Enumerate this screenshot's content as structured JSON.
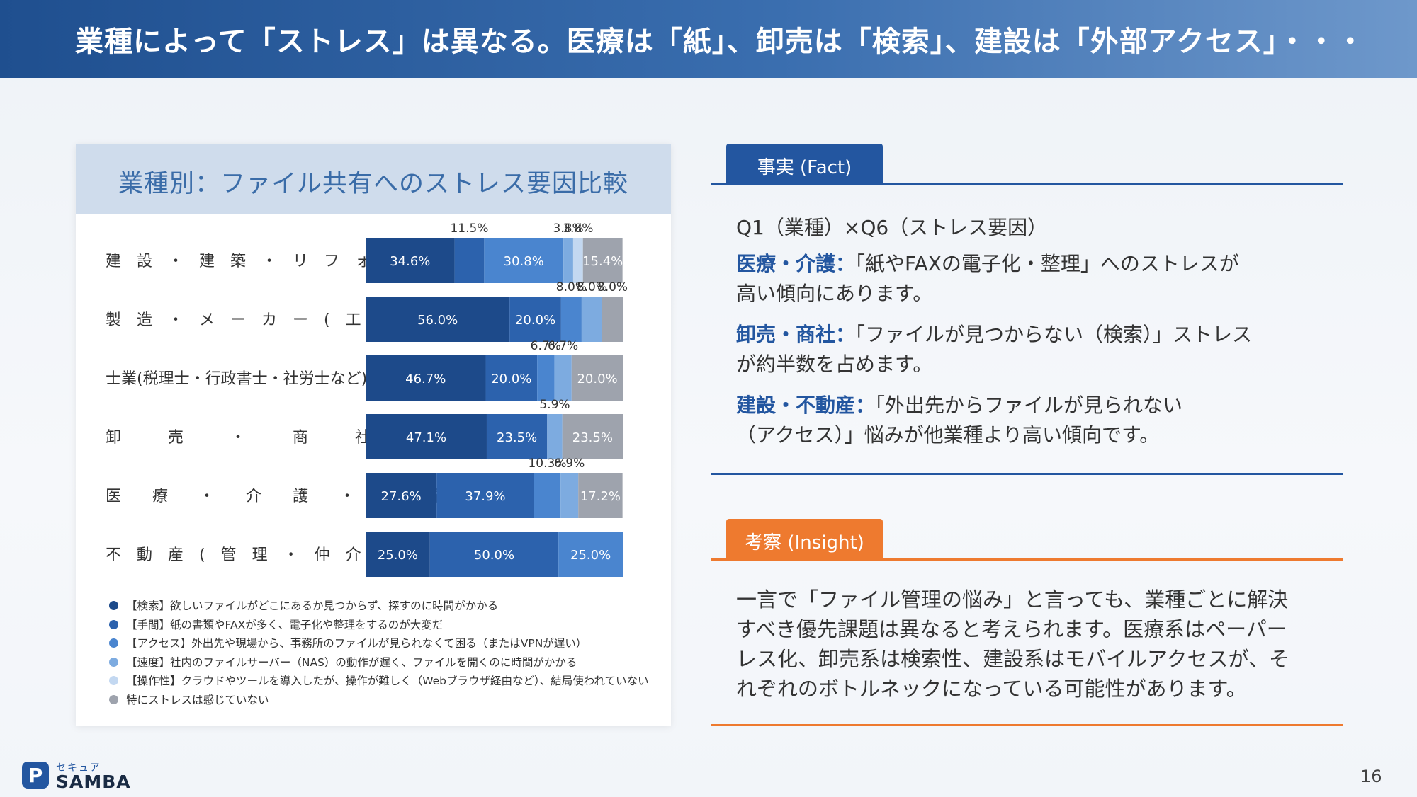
{
  "header": {
    "title": "業種によって「ストレス」は異なる。医療は「紙」、卸売は「検索」、建設は「外部アクセス」・・・"
  },
  "chart_data": {
    "type": "bar",
    "orientation": "horizontal",
    "stacked": true,
    "title": "業種別：ファイル共有へのストレス要因比較",
    "xlabel": "",
    "ylabel": "",
    "xlim": [
      0,
      100
    ],
    "grid": false,
    "legend_position": "bottom",
    "categories": [
      "建 設 ・ 建 築 ・ リ フ ォ ー ム",
      "製 造 ・ メ ー カ ー ( 工 場 含 む )",
      "士業(税理士・行政書士・社労士など)",
      "卸 売 ・ 商 社",
      "医 療 ・ 介 護 ・ 福 祉",
      "不 動 産 ( 管 理 ・ 仲 介 )"
    ],
    "category_labels_display": [
      "建　設　・　建　築　・　リ　フ　ォ　ー　ム",
      "製　造　・　メ　ー　カ　ー　(　工　場　含　む　)",
      "士業(税理士・行政書士・社労士など)",
      "卸　　　売　　　・　　　商　　　社",
      "医　　療　　・　　介　　護　　・　　福　　祉",
      "不　動　産　(　管　理　・　仲　介　)"
    ],
    "series": [
      {
        "name": "【検索】欲しいファイルがどこにあるか見つからず、探すのに時間がかかる",
        "color": "#1d4a8a",
        "values": [
          34.6,
          56.0,
          46.7,
          47.1,
          27.6,
          25.0
        ]
      },
      {
        "name": "【手間】紙の書類やFAXが多く、電子化や整理をするのが大変だ",
        "color": "#2c62ad",
        "values": [
          11.5,
          20.0,
          20.0,
          23.5,
          37.9,
          50.0
        ]
      },
      {
        "name": "【アクセス】外出先や現場から、事務所のファイルが見られなくて困る（またはVPNが遅い）",
        "color": "#4a85cf",
        "values": [
          30.8,
          8.0,
          6.7,
          0,
          10.3,
          25.0
        ]
      },
      {
        "name": "【速度】社内のファイルサーバー（NAS）の動作が遅く、ファイルを開くのに時間がかかる",
        "color": "#7dabe0",
        "values": [
          3.8,
          8.0,
          6.7,
          5.9,
          6.9,
          0
        ]
      },
      {
        "name": "【操作性】クラウドやツールを導入したが、操作が難しく（Webブラウザ経由など）、結局使われていない",
        "color": "#c3d8f1",
        "values": [
          3.8,
          0,
          0,
          0,
          0,
          0
        ]
      },
      {
        "name": "特にストレスは感じていない",
        "color": "#9ea3ad",
        "values": [
          15.4,
          8.0,
          20.0,
          23.5,
          17.2,
          0
        ]
      }
    ]
  },
  "fact": {
    "tab_label": "事実 (Fact)",
    "subtitle": "Q1（業種）×Q6（ストレス要因）",
    "items": [
      {
        "label": "医療・介護：",
        "line1": "「紙やFAXの電子化・整理」へのストレスが",
        "line2": "高い傾向にあります。"
      },
      {
        "label": "卸売・商社：",
        "line1": "「ファイルが見つからない（検索）」ストレス",
        "line2": "が約半数を占めます。"
      },
      {
        "label": "建設・不動産：",
        "line1": "「外出先からファイルが見られない",
        "line2": "（アクセス）」悩みが他業種より高い傾向です。"
      }
    ]
  },
  "insight": {
    "tab_label": "考察 (Insight)",
    "lines": [
      "一言で「ファイル管理の悩み」と言っても、業種ごとに解決",
      "すべき優先課題は異なると考えられます。医療系はペーパー",
      "レス化、卸売系は検索性、建設系はモバイルアクセスが、そ",
      "れぞれのボトルネックになっている可能性があります。"
    ]
  },
  "logo": {
    "small": "セキュア",
    "name": "SAMBA",
    "mark_glyph": "P"
  },
  "page_number": "16"
}
